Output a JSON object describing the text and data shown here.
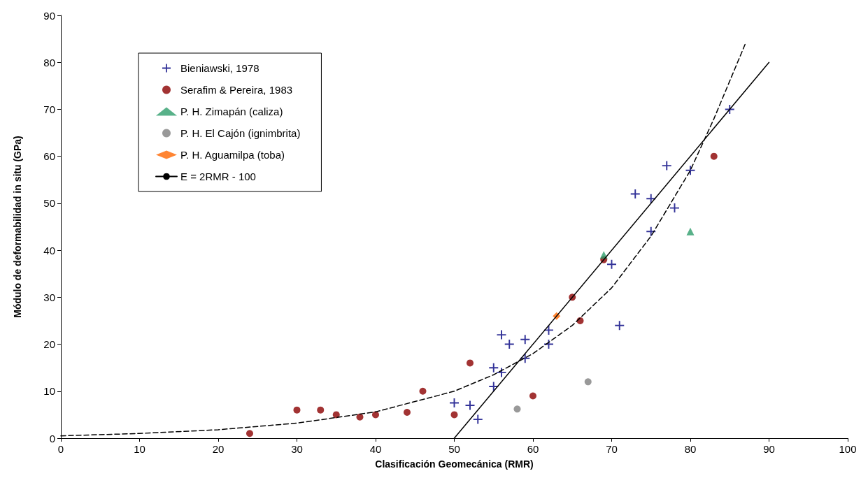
{
  "chart_data": {
    "type": "scatter",
    "xlabel": "Clasificación Geomecánica (RMR)",
    "ylabel": "Módulo de deformabilidad in situ (GPa)",
    "xlim": [
      0,
      100
    ],
    "xticks": [
      0,
      10,
      20,
      30,
      40,
      50,
      60,
      70,
      80,
      90,
      100
    ],
    "ylim": [
      0,
      90
    ],
    "yticks": [
      0,
      10,
      20,
      30,
      40,
      50,
      60,
      70,
      80,
      90
    ],
    "grid": false,
    "legend": "top left",
    "series": [
      {
        "name": "Bieniawski, 1978",
        "color": "#000080",
        "marker": "cross",
        "x": [
          50,
          52,
          53,
          55,
          55,
          56,
          56,
          57,
          59,
          59,
          62,
          62,
          70,
          71,
          73,
          75,
          75,
          77,
          78,
          80,
          85
        ],
        "values": [
          7.5,
          7,
          4,
          15,
          11,
          22,
          14,
          20,
          21,
          17,
          23,
          20,
          37,
          24,
          52,
          51,
          44,
          58,
          49,
          57,
          70
        ]
      },
      {
        "name": "Serafim & Pereira, 1983",
        "color": "#8b0000",
        "marker": "circle",
        "x": [
          24,
          30,
          33,
          35,
          38,
          40,
          44,
          46,
          50,
          52,
          60,
          65,
          66,
          69,
          83
        ],
        "values": [
          1,
          6,
          6,
          5,
          4.5,
          5,
          5.5,
          10,
          5,
          16,
          9,
          30,
          25,
          38,
          60
        ]
      },
      {
        "name": "P. H. Zimapán (caliza)",
        "color": "#2e9e6b",
        "marker": "triangle",
        "x": [
          69,
          80
        ],
        "values": [
          39,
          44
        ]
      },
      {
        "name": "P. H. El Cajón (ignimbrita)",
        "color": "#808080",
        "marker": "circle",
        "x": [
          58,
          67
        ],
        "values": [
          6.2,
          12
        ]
      },
      {
        "name": "P. H. Aguamilpa (toba)",
        "color": "#ff6600",
        "marker": "diamond",
        "x": [
          63
        ],
        "values": [
          26
        ]
      },
      {
        "name": "E = 2RMR - 100",
        "type": "line",
        "color": "#000000",
        "line_style": "solid",
        "marker": "none",
        "x": [
          50,
          90
        ],
        "values": [
          0,
          80
        ]
      },
      {
        "type": "line",
        "color": "#000000",
        "line_style": "dashed",
        "marker": "none",
        "x": [
          0,
          10,
          20,
          30,
          40,
          50,
          55,
          60,
          65,
          70,
          75,
          80,
          83,
          85,
          87
        ],
        "values": [
          0.5,
          1,
          1.8,
          3.2,
          5.6,
          10,
          13.5,
          18,
          24,
          32,
          43,
          57,
          68,
          76,
          84
        ]
      }
    ]
  }
}
